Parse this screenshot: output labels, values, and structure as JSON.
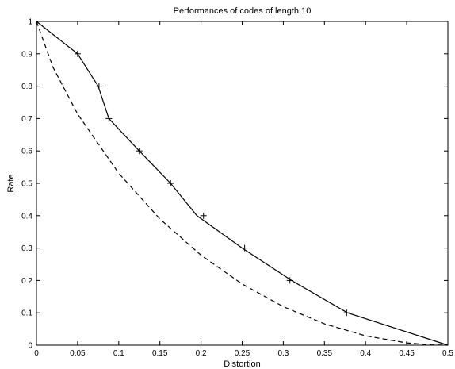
{
  "chart_data": {
    "type": "line",
    "title": "Performances of codes of length 10",
    "xlabel": "Distortion",
    "ylabel": "Rate",
    "xlim": [
      0,
      0.5
    ],
    "ylim": [
      0,
      1
    ],
    "xticks": [
      0,
      0.05,
      0.1,
      0.15,
      0.2,
      0.25,
      0.3,
      0.35,
      0.4,
      0.45,
      0.5
    ],
    "xtick_labels": [
      "0",
      "0.05",
      "0.1",
      "0.15",
      "0.2",
      "0.25",
      "0.3",
      "0.35",
      "0.4",
      "0.45",
      "0.5"
    ],
    "yticks": [
      0,
      0.1,
      0.2,
      0.3,
      0.4,
      0.5,
      0.6,
      0.7,
      0.8,
      0.9,
      1
    ],
    "ytick_labels": [
      "0",
      "0.1",
      "0.2",
      "0.3",
      "0.4",
      "0.5",
      "0.6",
      "0.7",
      "0.8",
      "0.9",
      "1"
    ],
    "grid": false,
    "series": [
      {
        "style": "solid",
        "color": "#000000",
        "x": [
          0,
          0.05,
          0.075,
          0.088,
          0.125,
          0.163,
          0.195,
          0.25,
          0.31,
          0.378,
          0.5
        ],
        "y": [
          1,
          0.9,
          0.8,
          0.7,
          0.6,
          0.5,
          0.4,
          0.3,
          0.2,
          0.1,
          0
        ]
      },
      {
        "style": "dashed",
        "color": "#000000",
        "x": [
          0,
          0.02,
          0.05,
          0.1,
          0.15,
          0.2,
          0.25,
          0.3,
          0.35,
          0.4,
          0.45,
          0.48,
          0.5
        ],
        "y": [
          1,
          0.859,
          0.714,
          0.531,
          0.39,
          0.278,
          0.189,
          0.119,
          0.066,
          0.029,
          0.007,
          0.001,
          0
        ]
      },
      {
        "style": "markers",
        "marker": "+",
        "color": "#000000",
        "x": [
          0.05,
          0.076,
          0.088,
          0.125,
          0.163,
          0.203,
          0.253,
          0.308,
          0.377
        ],
        "y": [
          0.9,
          0.8,
          0.7,
          0.6,
          0.5,
          0.4,
          0.3,
          0.2,
          0.1
        ]
      }
    ]
  }
}
